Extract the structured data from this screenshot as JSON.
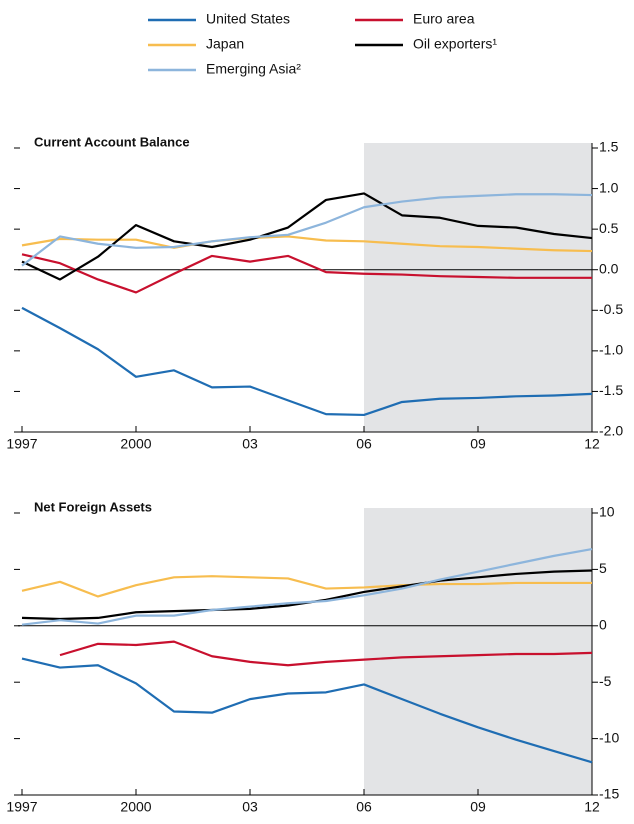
{
  "chart_data": [
    {
      "type": "line",
      "title": "Current Account Balance",
      "x": [
        1997,
        1998,
        1999,
        2000,
        2001,
        2002,
        2003,
        2004,
        2005,
        2006,
        2007,
        2008,
        2009,
        2010,
        2011,
        2012
      ],
      "series": [
        {
          "name": "United States",
          "color": "#1f6db3",
          "values": [
            -0.47,
            -0.72,
            -0.98,
            -1.32,
            -1.24,
            -1.45,
            -1.44,
            -1.61,
            -1.78,
            -1.79,
            -1.63,
            -1.59,
            -1.58,
            -1.56,
            -1.55,
            -1.53
          ]
        },
        {
          "name": "Euro area",
          "color": "#c8102e",
          "values": [
            0.19,
            0.08,
            -0.12,
            -0.28,
            -0.05,
            0.17,
            0.1,
            0.17,
            -0.03,
            -0.05,
            -0.06,
            -0.08,
            -0.09,
            -0.1,
            -0.1,
            -0.1
          ]
        },
        {
          "name": "Japan",
          "color": "#f7bd4f",
          "values": [
            0.3,
            0.38,
            0.37,
            0.37,
            0.27,
            0.35,
            0.39,
            0.41,
            0.36,
            0.35,
            0.32,
            0.29,
            0.28,
            0.26,
            0.24,
            0.23
          ]
        },
        {
          "name": "Oil exporters¹",
          "color": "#000000",
          "values": [
            0.1,
            -0.12,
            0.16,
            0.55,
            0.35,
            0.28,
            0.37,
            0.52,
            0.86,
            0.94,
            0.67,
            0.64,
            0.54,
            0.52,
            0.44,
            0.39
          ]
        },
        {
          "name": "Emerging Asia²",
          "color": "#8db5dc",
          "values": [
            0.05,
            0.41,
            0.32,
            0.27,
            0.28,
            0.35,
            0.4,
            0.43,
            0.58,
            0.77,
            0.84,
            0.89,
            0.91,
            0.93,
            0.93,
            0.92
          ]
        }
      ],
      "xlim": [
        1997,
        2012
      ],
      "xticks": [
        1997,
        2000,
        {
          "value": 2003,
          "label": "03"
        },
        {
          "value": 2006,
          "label": "06"
        },
        {
          "value": 2009,
          "label": "09"
        },
        {
          "value": 2012,
          "label": "12"
        }
      ],
      "ylim": [
        -2,
        1.5
      ],
      "yticks": [
        {
          "value": 1.5,
          "label": "1.5"
        },
        {
          "value": 1,
          "label": "1.0"
        },
        {
          "value": 0.5,
          "label": "0.5"
        },
        {
          "value": 0,
          "label": "0.0"
        },
        {
          "value": -0.5,
          "label": "-0.5"
        },
        {
          "value": -1,
          "label": "-1.0"
        },
        {
          "value": -1.5,
          "label": "-1.5"
        },
        {
          "value": -2,
          "label": "-2.0"
        }
      ],
      "shade": [
        2006,
        2012
      ]
    },
    {
      "type": "line",
      "title": "Net Foreign Assets",
      "x": [
        1997,
        1998,
        1999,
        2000,
        2001,
        2002,
        2003,
        2004,
        2005,
        2006,
        2007,
        2008,
        2009,
        2010,
        2011,
        2012
      ],
      "series": [
        {
          "color": "#1f6db3",
          "values": [
            -2.9,
            -3.7,
            -3.5,
            -5.1,
            -7.6,
            -7.7,
            -6.5,
            -6.0,
            -5.9,
            -5.2,
            -6.5,
            -7.8,
            -9.0,
            -10.1,
            -11.1,
            -12.1
          ]
        },
        {
          "color": "#c8102e",
          "values": [
            null,
            -2.6,
            -1.6,
            -1.7,
            -1.4,
            -2.7,
            -3.2,
            -3.5,
            -3.2,
            -3.0,
            -2.8,
            -2.7,
            -2.6,
            -2.5,
            -2.5,
            -2.4
          ]
        },
        {
          "color": "#f7bd4f",
          "values": [
            3.1,
            3.9,
            2.6,
            3.6,
            4.3,
            4.4,
            4.3,
            4.2,
            3.3,
            3.4,
            3.6,
            3.7,
            3.7,
            3.8,
            3.8,
            3.8
          ]
        },
        {
          "color": "#000000",
          "values": [
            0.7,
            0.6,
            0.7,
            1.2,
            1.3,
            1.4,
            1.5,
            1.8,
            2.3,
            3.0,
            3.5,
            4.0,
            4.3,
            4.6,
            4.8,
            4.9
          ]
        },
        {
          "color": "#8db5dc",
          "values": [
            0.1,
            0.5,
            0.2,
            0.9,
            0.9,
            1.4,
            1.7,
            2.0,
            2.2,
            2.7,
            3.3,
            4.1,
            4.8,
            5.5,
            6.2,
            6.8
          ]
        }
      ],
      "xlim": [
        1997,
        2012
      ],
      "xticks": [
        1997,
        2000,
        {
          "value": 2003,
          "label": "03"
        },
        {
          "value": 2006,
          "label": "06"
        },
        {
          "value": 2009,
          "label": "09"
        },
        {
          "value": 2012,
          "label": "12"
        }
      ],
      "ylim": [
        -15,
        10
      ],
      "yticks": [
        10,
        5,
        0,
        -5,
        -10,
        -15
      ],
      "shade": [
        2006,
        2012
      ]
    }
  ]
}
